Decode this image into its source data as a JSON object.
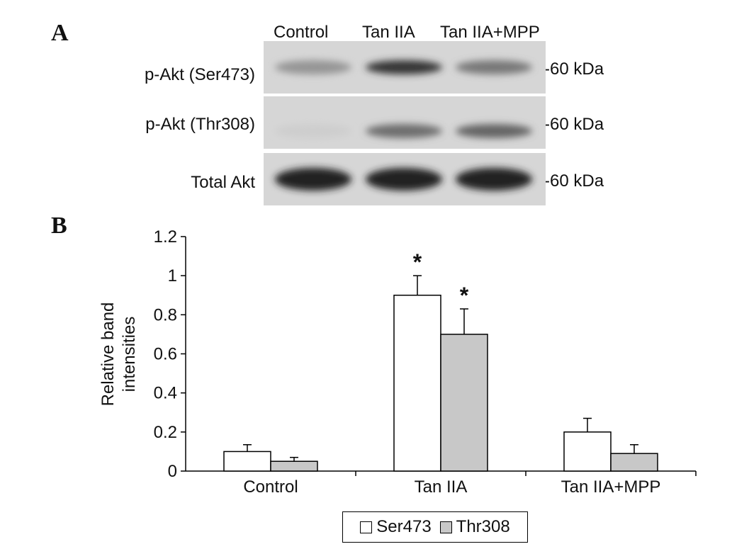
{
  "panels": {
    "a": "A",
    "b": "B"
  },
  "blot": {
    "lanes": [
      "Control",
      "Tan IIA",
      "Tan IIA+MPP"
    ],
    "rows": [
      {
        "label": "p-Akt (Ser473)",
        "marker": "-60 kDa",
        "intensity": [
          0.35,
          0.85,
          0.5
        ]
      },
      {
        "label": "p-Akt (Thr308)",
        "marker": "-60 kDa",
        "intensity": [
          0.05,
          0.55,
          0.6
        ]
      },
      {
        "label": "Total Akt",
        "marker": "-60 kDa",
        "intensity": [
          0.95,
          0.95,
          0.95
        ]
      }
    ]
  },
  "chart_data": {
    "type": "bar",
    "categories": [
      "Control",
      "Tan IIA",
      "Tan IIA+MPP"
    ],
    "series": [
      {
        "name": "Ser473",
        "values": [
          0.1,
          0.9,
          0.2
        ],
        "errors": [
          0.035,
          0.1,
          0.07
        ],
        "color": "#ffffff"
      },
      {
        "name": "Thr308",
        "values": [
          0.05,
          0.7,
          0.09
        ],
        "errors": [
          0.02,
          0.13,
          0.045
        ],
        "color": "#c8c8c8"
      }
    ],
    "annotations": [
      {
        "category": "Tan IIA",
        "series": "Ser473",
        "text": "*"
      },
      {
        "category": "Tan IIA",
        "series": "Thr308",
        "text": "*"
      }
    ],
    "ylabel_lines": [
      "Relative band",
      "intensities"
    ],
    "xlabel": "",
    "ylim": [
      0,
      1.2
    ],
    "yticks": [
      0,
      0.2,
      0.4,
      0.6,
      0.8,
      1,
      1.2
    ],
    "ytick_labels": [
      "0",
      "0.2",
      "0.4",
      "0.6",
      "0.8",
      "1",
      "1.2"
    ],
    "grid": false,
    "legend_position": "bottom"
  }
}
